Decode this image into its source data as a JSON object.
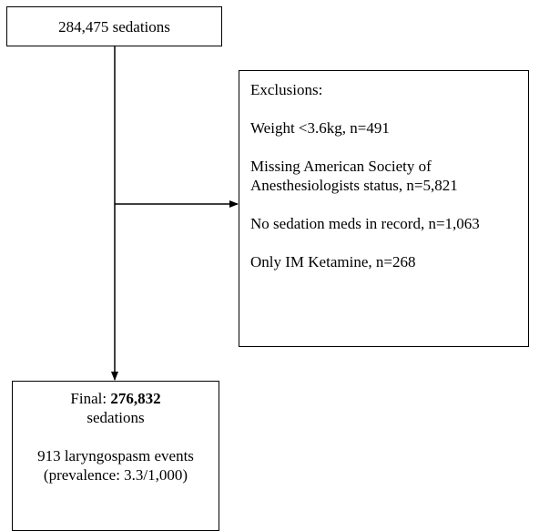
{
  "top_box": {
    "text": "284,475 sedations"
  },
  "exclusions": {
    "heading": "Exclusions:",
    "items": [
      "Weight <3.6kg, n=491",
      "Missing American Society of Anesthesiologists status, n=5,821",
      "No sedation meds in record, n=1,063",
      "Only IM Ketamine, n=268"
    ]
  },
  "final_box": {
    "prefix": "Final: ",
    "count": "276,832",
    "unit": "sedations",
    "events": "913 laryngospasm events (prevalence: 3.3/1,000)"
  }
}
